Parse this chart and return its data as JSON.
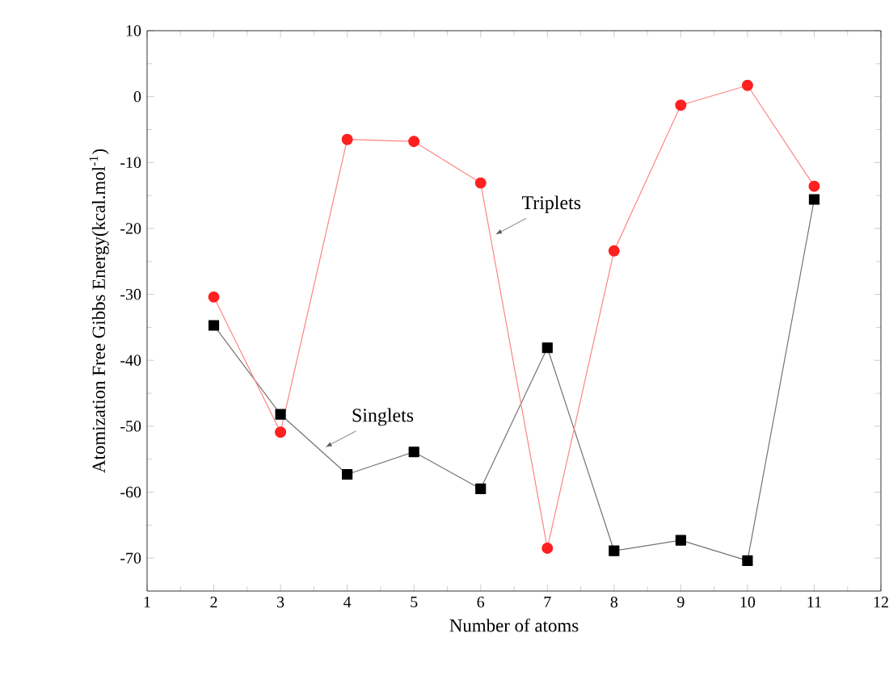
{
  "chart_data": {
    "type": "line",
    "xlabel": "Number of atoms",
    "ylabel": "Atomization Free Gibbs Energy(kcal.mol$^{-1}$)",
    "x": [
      2,
      3,
      4,
      5,
      6,
      7,
      8,
      9,
      10,
      11
    ],
    "series": [
      {
        "name": "Singlets",
        "color": "#000000",
        "marker": "square",
        "values": [
          -34.7,
          -48.2,
          -57.3,
          -53.9,
          -59.5,
          -38.1,
          -68.9,
          -67.3,
          -70.4,
          -15.6
        ]
      },
      {
        "name": "Triplets",
        "color": "#ff2020",
        "marker": "circle",
        "values": [
          -30.4,
          -50.9,
          -6.5,
          -6.8,
          -13.1,
          -68.5,
          -23.4,
          -1.3,
          1.7,
          -13.6
        ]
      }
    ],
    "xlim": [
      1,
      12
    ],
    "xticks": [
      1,
      2,
      3,
      4,
      5,
      6,
      7,
      8,
      9,
      10,
      11,
      12
    ],
    "ylim": [
      -75,
      10
    ],
    "yticks": [
      -70,
      -60,
      -50,
      -40,
      -30,
      -20,
      -10,
      0,
      10
    ],
    "grid": false,
    "legend": false,
    "line_style": "solid"
  }
}
